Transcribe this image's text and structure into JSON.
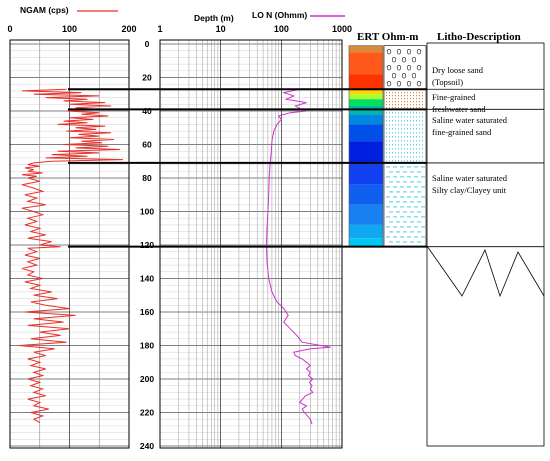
{
  "legend": {
    "ngam_label": "NGAM (cps)",
    "depth_label": "Depth (m)",
    "lon_label": "LO N  (Ohmm)",
    "ngam_color": "#e8302b",
    "lon_color": "#cc33cc"
  },
  "ngam_axis": {
    "ticks": [
      "0",
      "100",
      "200"
    ],
    "range": [
      0,
      200
    ]
  },
  "lon_axis": {
    "ticks": [
      "1",
      "10",
      "100",
      "1000"
    ],
    "range": [
      1,
      1000
    ],
    "scale": "log"
  },
  "depth_axis": {
    "ticks": [
      "0",
      "20",
      "40",
      "60",
      "80",
      "100",
      "120",
      "140",
      "160",
      "180",
      "200",
      "220",
      "240"
    ],
    "range": [
      0,
      240
    ]
  },
  "ert": {
    "title": "ERT Ohm-m",
    "bands": [
      {
        "top": 1,
        "bottom": 5,
        "color": "#d98a3a"
      },
      {
        "top": 5,
        "bottom": 18,
        "color": "#ff5a1a"
      },
      {
        "top": 18,
        "bottom": 27,
        "color": "#ff3300"
      },
      {
        "top": 27,
        "bottom": 30,
        "color": "#ffd400"
      },
      {
        "top": 30,
        "bottom": 33,
        "color": "#a8ff30"
      },
      {
        "top": 33,
        "bottom": 37,
        "color": "#00e060"
      },
      {
        "top": 37,
        "bottom": 42,
        "color": "#00b8a8"
      },
      {
        "top": 42,
        "bottom": 48,
        "color": "#0088e0"
      },
      {
        "top": 48,
        "bottom": 58,
        "color": "#0050e8"
      },
      {
        "top": 58,
        "bottom": 72,
        "color": "#0020e0"
      },
      {
        "top": 72,
        "bottom": 84,
        "color": "#1040f0"
      },
      {
        "top": 84,
        "bottom": 96,
        "color": "#1060f0"
      },
      {
        "top": 96,
        "bottom": 108,
        "color": "#1880f0"
      },
      {
        "top": 108,
        "bottom": 116,
        "color": "#10a8f0"
      },
      {
        "top": 116,
        "bottom": 121,
        "color": "#00c8f0"
      }
    ]
  },
  "litho": {
    "title": "Litho-Description",
    "units": [
      {
        "top": 1,
        "bottom": 27,
        "label": "Dry loose sand (Topsoil)",
        "pattern": "circles"
      },
      {
        "top": 27,
        "bottom": 39,
        "label": "Fine-grained freshwater sand",
        "pattern": "dots-orange"
      },
      {
        "top": 39,
        "bottom": 71,
        "label": "Saline water saturated fine-grained sand",
        "pattern": "dots-cyan"
      },
      {
        "top": 71,
        "bottom": 121,
        "label": "Saline water saturated Silty clay/Clayey unit",
        "pattern": "dashes-cyan"
      }
    ]
  },
  "boundaries": [
    27,
    39,
    71,
    121
  ],
  "chart_data": [
    {
      "type": "line",
      "title": "",
      "xlabel": "NGAM (cps)",
      "ylabel": "Depth (m)",
      "xlim": [
        0,
        200
      ],
      "ylim": [
        240,
        0
      ],
      "series": [
        {
          "name": "NGAM (cps)",
          "points": [
            [
              95,
              27
            ],
            [
              20,
              28
            ],
            [
              120,
              29
            ],
            [
              40,
              30
            ],
            [
              150,
              31
            ],
            [
              60,
              32
            ],
            [
              130,
              33
            ],
            [
              90,
              34
            ],
            [
              160,
              35
            ],
            [
              100,
              36
            ],
            [
              170,
              37
            ],
            [
              110,
              38
            ],
            [
              140,
              39
            ],
            [
              95,
              40
            ],
            [
              150,
              41
            ],
            [
              120,
              42
            ],
            [
              165,
              43
            ],
            [
              100,
              44
            ],
            [
              140,
              45
            ],
            [
              90,
              46
            ],
            [
              130,
              47
            ],
            [
              80,
              48
            ],
            [
              160,
              49
            ],
            [
              110,
              50
            ],
            [
              145,
              51
            ],
            [
              95,
              52
            ],
            [
              170,
              53
            ],
            [
              115,
              54
            ],
            [
              150,
              55
            ],
            [
              100,
              56
            ],
            [
              175,
              57
            ],
            [
              120,
              58
            ],
            [
              155,
              59
            ],
            [
              90,
              60
            ],
            [
              165,
              61
            ],
            [
              110,
              62
            ],
            [
              185,
              63
            ],
            [
              80,
              64
            ],
            [
              150,
              65
            ],
            [
              70,
              66
            ],
            [
              130,
              67
            ],
            [
              60,
              68
            ],
            [
              190,
              69
            ],
            [
              70,
              70
            ],
            [
              40,
              71
            ],
            [
              30,
              72
            ],
            [
              50,
              73
            ],
            [
              25,
              74
            ],
            [
              40,
              75
            ],
            [
              30,
              76
            ],
            [
              55,
              77
            ],
            [
              20,
              78
            ],
            [
              45,
              79
            ],
            [
              30,
              80
            ],
            [
              50,
              82
            ],
            [
              20,
              84
            ],
            [
              40,
              86
            ],
            [
              55,
              88
            ],
            [
              25,
              90
            ],
            [
              45,
              92
            ],
            [
              30,
              94
            ],
            [
              60,
              96
            ],
            [
              20,
              98
            ],
            [
              40,
              100
            ],
            [
              55,
              102
            ],
            [
              30,
              104
            ],
            [
              45,
              106
            ],
            [
              25,
              108
            ],
            [
              50,
              110
            ],
            [
              35,
              112
            ],
            [
              60,
              114
            ],
            [
              30,
              116
            ],
            [
              70,
              118
            ],
            [
              50,
              120
            ],
            [
              85,
              121
            ],
            [
              30,
              122
            ],
            [
              45,
              124
            ],
            [
              25,
              126
            ],
            [
              50,
              128
            ],
            [
              30,
              130
            ],
            [
              45,
              132
            ],
            [
              20,
              134
            ],
            [
              40,
              136
            ],
            [
              30,
              138
            ],
            [
              55,
              140
            ],
            [
              25,
              142
            ],
            [
              50,
              144
            ],
            [
              35,
              146
            ],
            [
              70,
              148
            ],
            [
              40,
              150
            ],
            [
              80,
              152
            ],
            [
              35,
              154
            ],
            [
              60,
              156
            ],
            [
              100,
              158
            ],
            [
              25,
              160
            ],
            [
              110,
              162
            ],
            [
              40,
              164
            ],
            [
              90,
              166
            ],
            [
              30,
              168
            ],
            [
              100,
              170
            ],
            [
              50,
              172
            ],
            [
              85,
              174
            ],
            [
              35,
              176
            ],
            [
              95,
              178
            ],
            [
              15,
              180
            ],
            [
              75,
              182
            ],
            [
              40,
              184
            ],
            [
              60,
              186
            ],
            [
              30,
              188
            ],
            [
              50,
              190
            ],
            [
              35,
              192
            ],
            [
              60,
              194
            ],
            [
              40,
              196
            ],
            [
              55,
              198
            ],
            [
              30,
              200
            ],
            [
              50,
              202
            ],
            [
              35,
              204
            ],
            [
              55,
              206
            ],
            [
              40,
              208
            ],
            [
              60,
              210
            ],
            [
              30,
              212
            ],
            [
              50,
              214
            ],
            [
              40,
              216
            ],
            [
              65,
              218
            ],
            [
              35,
              220
            ],
            [
              55,
              222
            ],
            [
              40,
              224
            ],
            [
              50,
              226
            ]
          ]
        }
      ]
    },
    {
      "type": "line",
      "title": "",
      "xlabel": "LO N  (Ohmm)",
      "ylabel": "Depth (m)",
      "xscale": "log",
      "xlim": [
        1,
        1000
      ],
      "ylim": [
        240,
        0
      ],
      "series": [
        {
          "name": "LO N  (Ohmm)",
          "points": [
            [
              200,
              27
            ],
            [
              110,
              29
            ],
            [
              160,
              31
            ],
            [
              120,
              33
            ],
            [
              260,
              35
            ],
            [
              170,
              37
            ],
            [
              210,
              39
            ],
            [
              260,
              40
            ],
            [
              140,
              41
            ],
            [
              90,
              43
            ],
            [
              100,
              45
            ],
            [
              85,
              48
            ],
            [
              75,
              52
            ],
            [
              70,
              58
            ],
            [
              68,
              65
            ],
            [
              65,
              72
            ],
            [
              63,
              80
            ],
            [
              62,
              90
            ],
            [
              60,
              100
            ],
            [
              58,
              110
            ],
            [
              57,
              120
            ],
            [
              58,
              130
            ],
            [
              62,
              140
            ],
            [
              70,
              148
            ],
            [
              85,
              154
            ],
            [
              110,
              158
            ],
            [
              130,
              162
            ],
            [
              110,
              166
            ],
            [
              140,
              170
            ],
            [
              180,
              174
            ],
            [
              220,
              178
            ],
            [
              650,
              181
            ],
            [
              300,
              182
            ],
            [
              160,
              184
            ],
            [
              170,
              186
            ],
            [
              220,
              188
            ],
            [
              260,
              190
            ],
            [
              300,
              192
            ],
            [
              260,
              194
            ],
            [
              300,
              196
            ],
            [
              280,
              198
            ],
            [
              330,
              200
            ],
            [
              290,
              202
            ],
            [
              320,
              204
            ],
            [
              300,
              206
            ],
            [
              330,
              208
            ],
            [
              250,
              210
            ],
            [
              200,
              214
            ],
            [
              260,
              216
            ],
            [
              220,
              218
            ],
            [
              240,
              220
            ],
            [
              300,
              224
            ],
            [
              320,
              227
            ]
          ]
        }
      ]
    }
  ]
}
